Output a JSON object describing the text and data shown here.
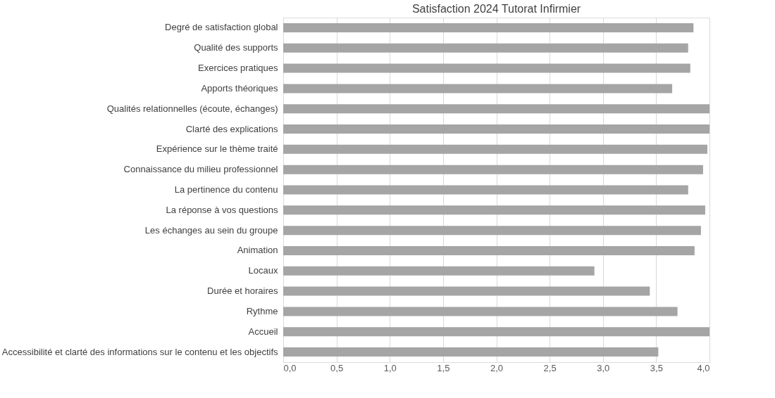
{
  "chart_data": {
    "type": "bar",
    "orientation": "horizontal",
    "title": "Satisfaction 2024  Tutorat Infirmier",
    "categories": [
      "Degré de satisfaction global",
      "Qualité des supports",
      "Exercices pratiques",
      "Apports théoriques",
      "Qualités relationnelles (écoute, échanges)",
      "Clarté des explications",
      "Expérience sur le thème traité",
      "Connaissance du milieu professionnel",
      "La pertinence du contenu",
      "La réponse à vos questions",
      "Les échanges au sein du groupe",
      "Animation",
      "Locaux",
      "Durée et horaires",
      "Rythme",
      "Accueil",
      "Accessibilité et clarté des informations sur le contenu et les objectifs"
    ],
    "values": [
      3.85,
      3.8,
      3.82,
      3.65,
      4.0,
      4.0,
      3.98,
      3.94,
      3.8,
      3.96,
      3.92,
      3.86,
      2.92,
      3.44,
      3.7,
      4.0,
      3.52
    ],
    "color": "#a5a5a5",
    "xlim": [
      0,
      4
    ],
    "xticks": [
      {
        "value": 0,
        "label": "0,0"
      },
      {
        "value": 0.5,
        "label": "0,5"
      },
      {
        "value": 1,
        "label": "1,0"
      },
      {
        "value": 1.5,
        "label": "1,5"
      },
      {
        "value": 2,
        "label": "2,0"
      },
      {
        "value": 2.5,
        "label": "2,5"
      },
      {
        "value": 3,
        "label": "3,0"
      },
      {
        "value": 3.5,
        "label": "3,5"
      },
      {
        "value": 4,
        "label": "4,0"
      }
    ],
    "grid": "x"
  }
}
